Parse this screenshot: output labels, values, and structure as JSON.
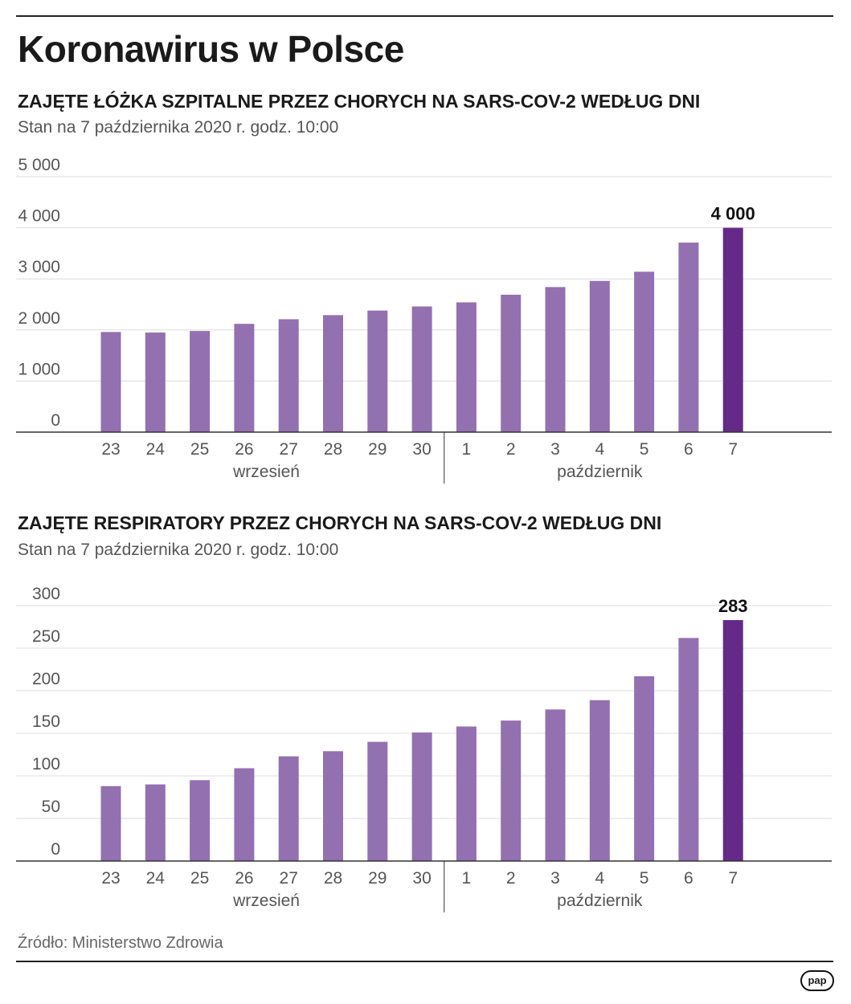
{
  "title": "Koronawirus w Polsce",
  "source": "Źródło: Ministerstwo Zdrowia",
  "logo": "pap",
  "colors": {
    "bar": "#9370b0",
    "highlight": "#652a87",
    "grid": "#dcdcdc",
    "axis": "#333333"
  },
  "chart_data": [
    {
      "type": "bar",
      "title": "ZAJĘTE ŁÓŻKA SZPITALNE PRZEZ CHORYCH NA SARS-COV-2 WEDŁUG DNI",
      "subtitle": "Stan na 7 października 2020 r. godz. 10:00",
      "categories": [
        "23",
        "24",
        "25",
        "26",
        "27",
        "28",
        "29",
        "30",
        "1",
        "2",
        "3",
        "4",
        "5",
        "6",
        "7"
      ],
      "values": [
        1960,
        1950,
        1980,
        2120,
        2210,
        2290,
        2380,
        2460,
        2540,
        2690,
        2840,
        2960,
        3140,
        3710,
        4000
      ],
      "highlight_index": 14,
      "highlight_label": "4 000",
      "y_ticks": [
        0,
        1000,
        2000,
        3000,
        4000,
        5000
      ],
      "y_tick_labels": [
        "0",
        "1 000",
        "2 000",
        "3 000",
        "4 000",
        "5 000"
      ],
      "ylim": [
        0,
        5000
      ],
      "groups": [
        {
          "label": "wrzesień",
          "start": 0,
          "end": 7
        },
        {
          "label": "październik",
          "start": 8,
          "end": 14
        }
      ]
    },
    {
      "type": "bar",
      "title": "ZAJĘTE RESPIRATORY PRZEZ CHORYCH NA SARS-COV-2 WEDŁUG DNI",
      "subtitle": "Stan na 7 października 2020 r. godz. 10:00",
      "categories": [
        "23",
        "24",
        "25",
        "26",
        "27",
        "28",
        "29",
        "30",
        "1",
        "2",
        "3",
        "4",
        "5",
        "6",
        "7"
      ],
      "values": [
        88,
        90,
        95,
        109,
        123,
        129,
        140,
        151,
        158,
        165,
        178,
        189,
        217,
        262,
        283
      ],
      "highlight_index": 14,
      "highlight_label": "283",
      "y_ticks": [
        0,
        50,
        100,
        150,
        200,
        250,
        300
      ],
      "y_tick_labels": [
        "0",
        "50",
        "100",
        "150",
        "200",
        "250",
        "300"
      ],
      "ylim": [
        0,
        300
      ],
      "groups": [
        {
          "label": "wrzesień",
          "start": 0,
          "end": 7
        },
        {
          "label": "październik",
          "start": 8,
          "end": 14
        }
      ]
    }
  ]
}
